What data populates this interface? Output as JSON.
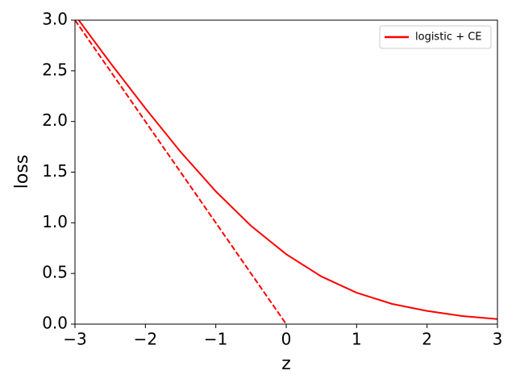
{
  "chart_data": {
    "type": "line",
    "xlabel": "z",
    "ylabel": "loss",
    "xlim": [
      -3,
      3
    ],
    "ylim": [
      0,
      3
    ],
    "xticks": [
      {
        "value": -3,
        "label": "−3"
      },
      {
        "value": -2,
        "label": "−2"
      },
      {
        "value": -1,
        "label": "−1"
      },
      0,
      1,
      2,
      3
    ],
    "yticks": [
      {
        "value": 0,
        "label": "0.0"
      },
      0.5,
      {
        "value": 1,
        "label": "1.0"
      },
      1.5,
      {
        "value": 2,
        "label": "2.0"
      },
      2.5,
      {
        "value": 3,
        "label": "3.0"
      }
    ],
    "grid": false,
    "legend": "upper right",
    "series": [
      {
        "name": "logistic + CE",
        "color": "#ff0000",
        "linestyle": "solid",
        "x": [
          -3,
          -2.5,
          -2,
          -1.5,
          -1,
          -0.5,
          0,
          0.5,
          1,
          1.5,
          2,
          2.5,
          3
        ],
        "values": [
          3.05,
          2.58,
          2.13,
          1.7,
          1.31,
          0.97,
          0.69,
          0.47,
          0.31,
          0.2,
          0.13,
          0.08,
          0.05
        ]
      },
      {
        "color": "#ff0000",
        "linestyle": "dashed",
        "x": [
          -3,
          0
        ],
        "values": [
          3,
          0
        ]
      }
    ]
  }
}
